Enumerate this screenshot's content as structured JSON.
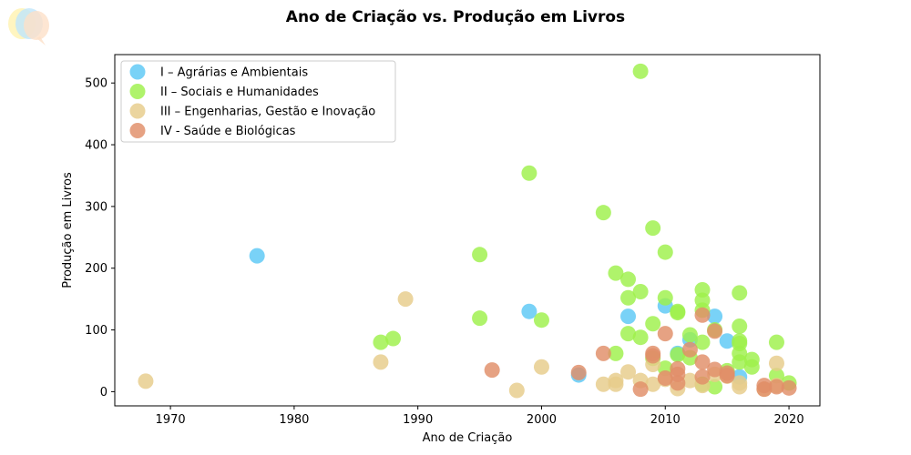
{
  "chart_data": {
    "type": "scatter",
    "title": "Ano de Criação vs. Produção em Livros",
    "xlabel": "Ano de Criação",
    "ylabel": "Produção em Livros",
    "xlim": [
      1965.5,
      2022.5
    ],
    "ylim": [
      -23,
      546
    ],
    "xticks": [
      1970,
      1980,
      1990,
      2000,
      2010,
      2020
    ],
    "yticks": [
      0,
      100,
      200,
      300,
      400,
      500
    ],
    "grid": false,
    "legend_position": "top-left",
    "series": [
      {
        "name": "I – Agrárias e Ambientais",
        "color": "#5bc8f5",
        "points": [
          [
            1977,
            220
          ],
          [
            1999,
            130
          ],
          [
            2003,
            27
          ],
          [
            2007,
            122
          ],
          [
            2010,
            139
          ],
          [
            2011,
            62
          ],
          [
            2012,
            84
          ],
          [
            2014,
            122
          ],
          [
            2015,
            82
          ],
          [
            2016,
            24
          ]
        ]
      },
      {
        "name": "II – Sociais e Humanidades",
        "color": "#9ef04a",
        "points": [
          [
            1987,
            80
          ],
          [
            1988,
            86
          ],
          [
            1995,
            222
          ],
          [
            1995,
            119
          ],
          [
            1999,
            354
          ],
          [
            2000,
            116
          ],
          [
            2005,
            290
          ],
          [
            2006,
            192
          ],
          [
            2006,
            62
          ],
          [
            2007,
            182
          ],
          [
            2007,
            152
          ],
          [
            2007,
            94
          ],
          [
            2008,
            519
          ],
          [
            2008,
            162
          ],
          [
            2008,
            88
          ],
          [
            2009,
            265
          ],
          [
            2009,
            110
          ],
          [
            2009,
            54
          ],
          [
            2010,
            226
          ],
          [
            2010,
            152
          ],
          [
            2010,
            38
          ],
          [
            2011,
            130
          ],
          [
            2011,
            128
          ],
          [
            2011,
            60
          ],
          [
            2012,
            92
          ],
          [
            2012,
            55
          ],
          [
            2013,
            165
          ],
          [
            2013,
            148
          ],
          [
            2013,
            132
          ],
          [
            2013,
            80
          ],
          [
            2013,
            12
          ],
          [
            2014,
            100
          ],
          [
            2014,
            8
          ],
          [
            2015,
            34
          ],
          [
            2016,
            160
          ],
          [
            2016,
            106
          ],
          [
            2016,
            82
          ],
          [
            2016,
            78
          ],
          [
            2016,
            62
          ],
          [
            2016,
            48
          ],
          [
            2017,
            52
          ],
          [
            2017,
            40
          ],
          [
            2019,
            80
          ],
          [
            2019,
            26
          ],
          [
            2020,
            14
          ]
        ]
      },
      {
        "name": "III – Engenharias, Gestão e Inovação",
        "color": "#e6cc8a",
        "points": [
          [
            1968,
            17
          ],
          [
            1987,
            48
          ],
          [
            1989,
            150
          ],
          [
            1998,
            2
          ],
          [
            2000,
            40
          ],
          [
            2005,
            12
          ],
          [
            2006,
            18
          ],
          [
            2006,
            12
          ],
          [
            2007,
            32
          ],
          [
            2008,
            18
          ],
          [
            2009,
            44
          ],
          [
            2009,
            12
          ],
          [
            2010,
            20
          ],
          [
            2011,
            5
          ],
          [
            2012,
            18
          ],
          [
            2013,
            10
          ],
          [
            2014,
            28
          ],
          [
            2015,
            25
          ],
          [
            2016,
            14
          ],
          [
            2016,
            8
          ],
          [
            2018,
            4
          ],
          [
            2019,
            46
          ],
          [
            2019,
            10
          ]
        ]
      },
      {
        "name": "IV - Saúde e Biológicas",
        "color": "#e08e68",
        "points": [
          [
            1996,
            35
          ],
          [
            2003,
            31
          ],
          [
            2005,
            62
          ],
          [
            2008,
            4
          ],
          [
            2009,
            62
          ],
          [
            2009,
            58
          ],
          [
            2010,
            94
          ],
          [
            2010,
            22
          ],
          [
            2011,
            37
          ],
          [
            2011,
            28
          ],
          [
            2011,
            14
          ],
          [
            2012,
            68
          ],
          [
            2013,
            124
          ],
          [
            2013,
            48
          ],
          [
            2013,
            24
          ],
          [
            2014,
            98
          ],
          [
            2014,
            36
          ],
          [
            2015,
            30
          ],
          [
            2015,
            26
          ],
          [
            2018,
            10
          ],
          [
            2018,
            4
          ],
          [
            2019,
            8
          ],
          [
            2020,
            6
          ]
        ]
      }
    ]
  },
  "logo": {
    "icon": "speech-bubbles-logo-icon"
  }
}
